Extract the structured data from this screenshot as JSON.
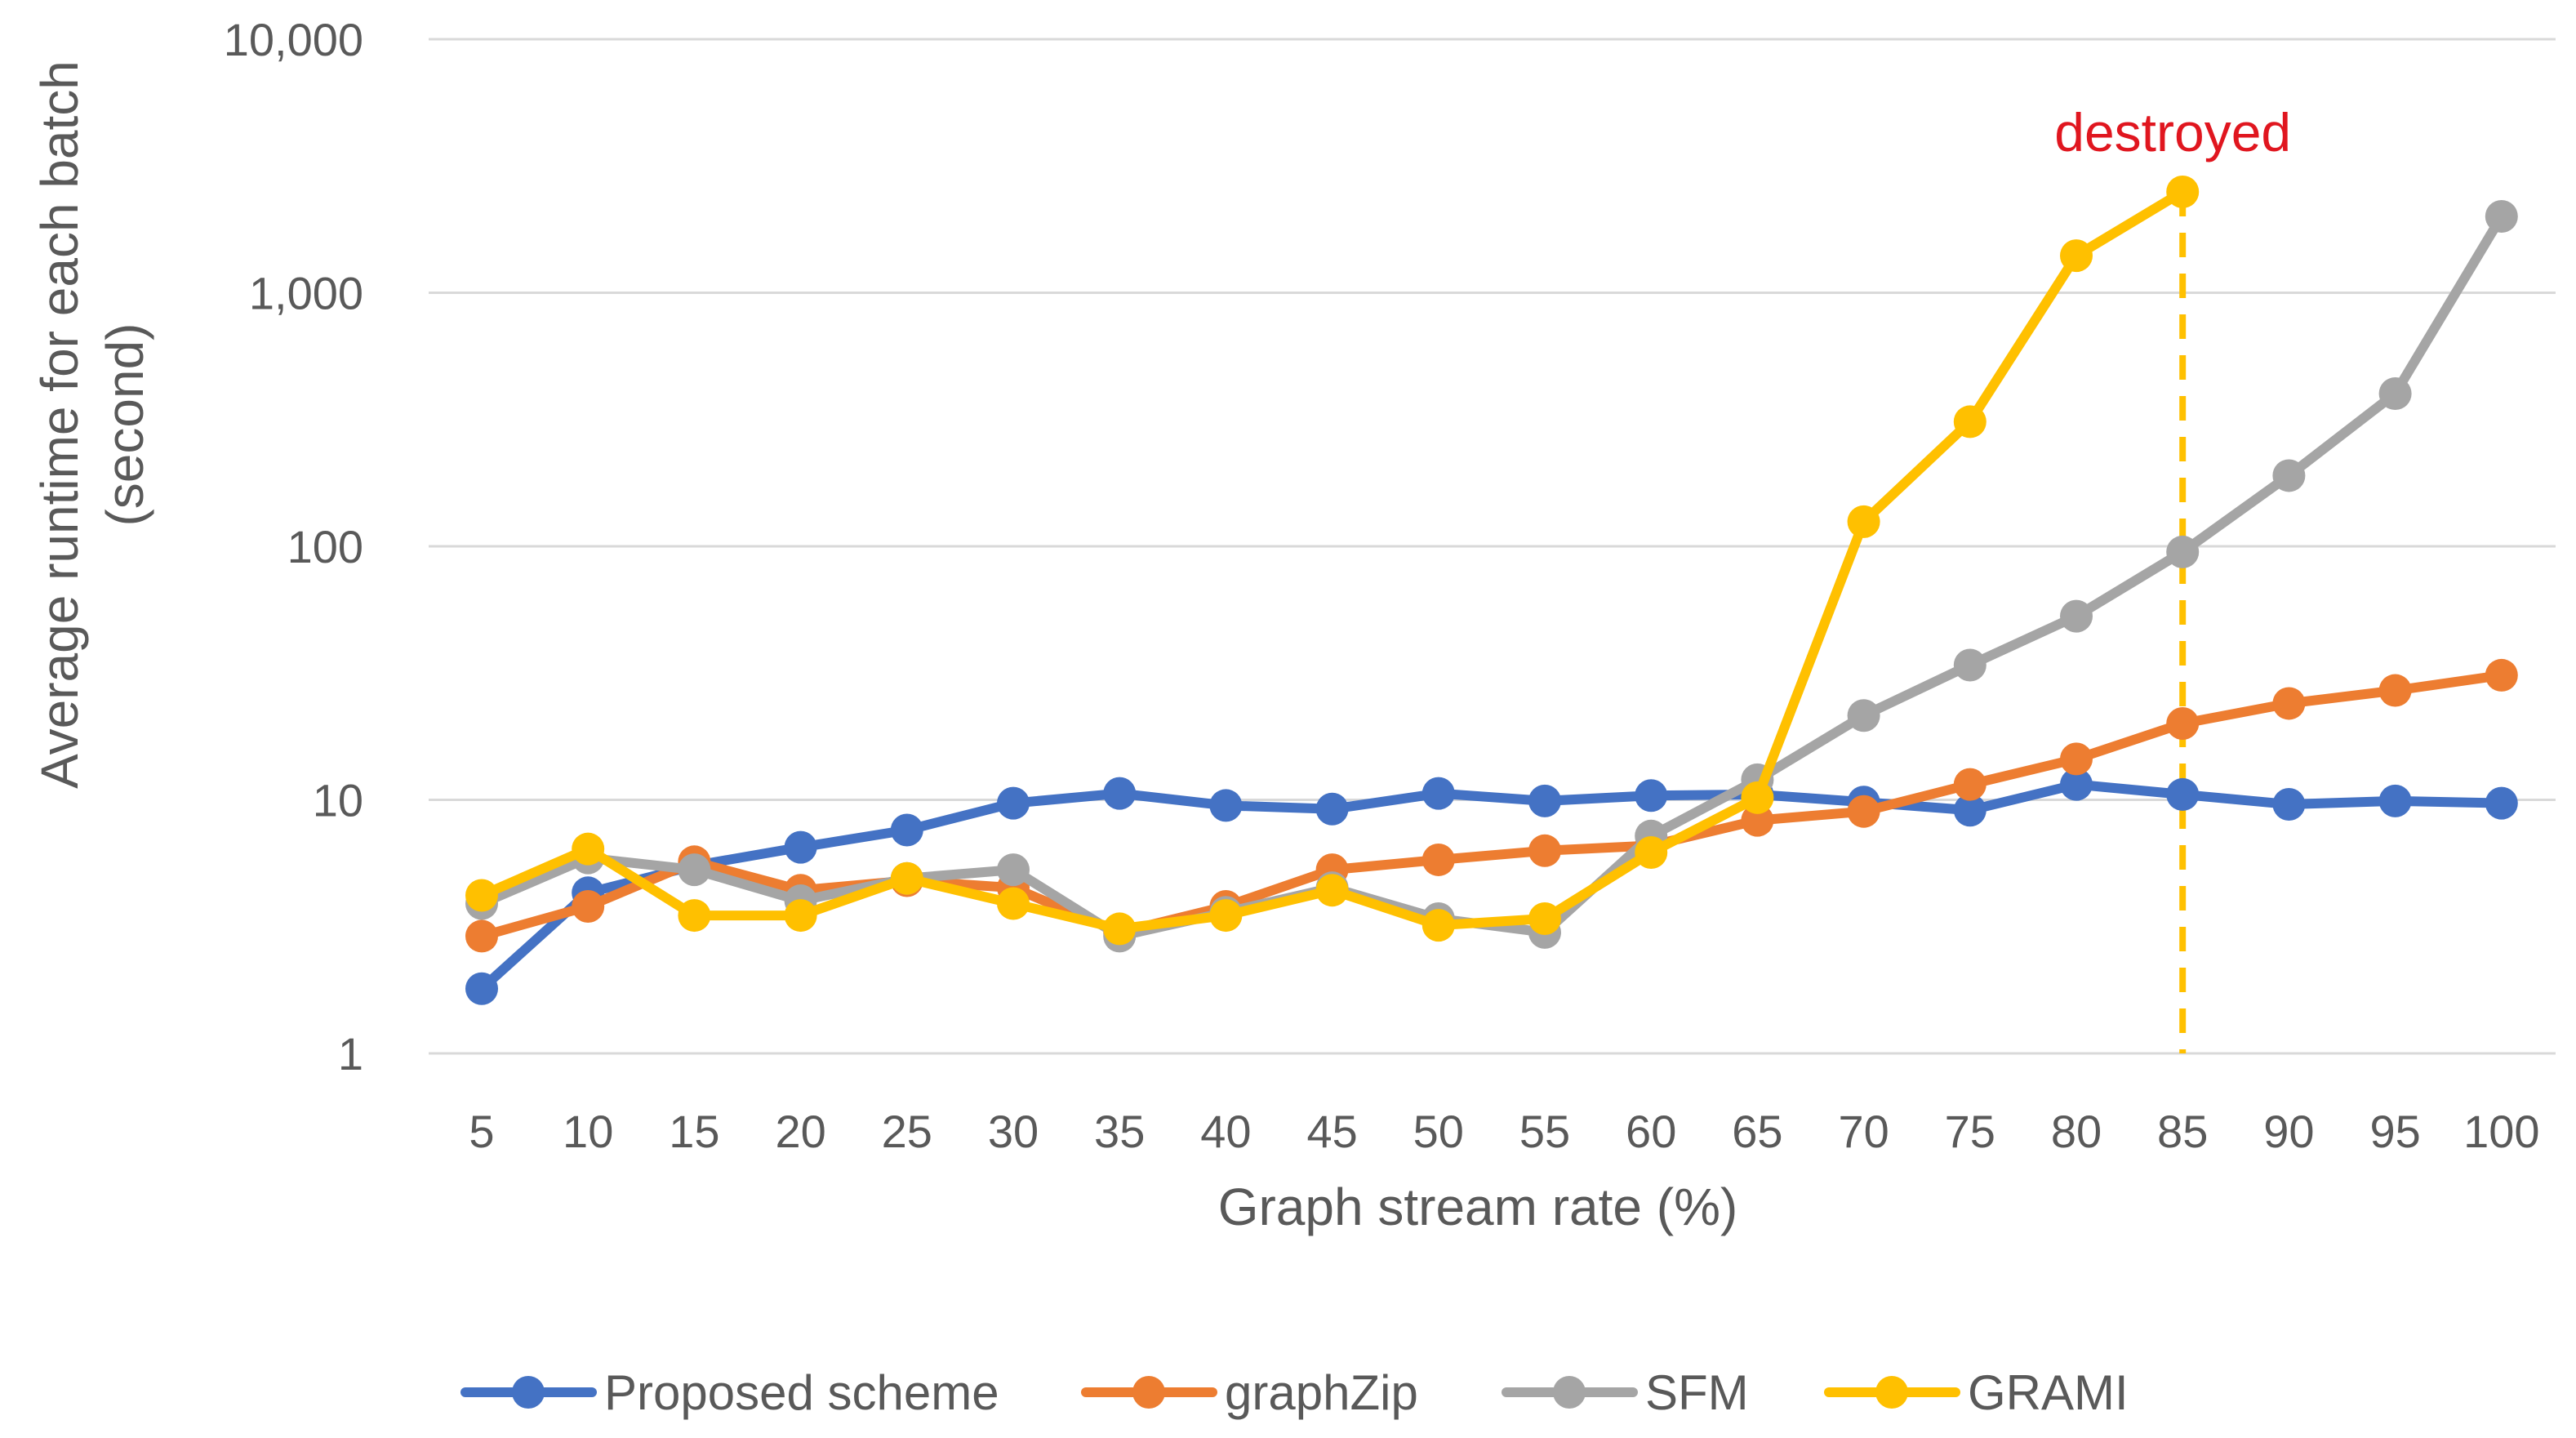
{
  "chart_data": {
    "type": "line",
    "title": "",
    "xlabel": "Graph stream rate (%)",
    "ylabel_lines": [
      "Average runtime for each batch",
      "(second)"
    ],
    "yscale": "log",
    "ylim": [
      1,
      10000
    ],
    "yticks": [
      1,
      10,
      100,
      1000,
      10000
    ],
    "ytick_labels": [
      "1",
      "10",
      "100",
      "1,000",
      "10,000"
    ],
    "grid": true,
    "legend_position": "bottom",
    "categories": [
      "5",
      "10",
      "15",
      "20",
      "25",
      "30",
      "35",
      "40",
      "45",
      "50",
      "55",
      "60",
      "65",
      "70",
      "75",
      "80",
      "85",
      "90",
      "95",
      "100"
    ],
    "series": [
      {
        "name": "Proposed scheme",
        "color": "#4472c4",
        "values": [
          1.8,
          4.3,
          5.5,
          6.5,
          7.6,
          9.7,
          10.6,
          9.5,
          9.2,
          10.6,
          9.9,
          10.4,
          10.5,
          9.8,
          9.1,
          11.5,
          10.5,
          9.6,
          9.9,
          9.7
        ]
      },
      {
        "name": "graphZip",
        "color": "#ed7d31",
        "values": [
          2.9,
          3.8,
          5.7,
          4.4,
          4.8,
          4.5,
          3.0,
          3.8,
          5.3,
          5.8,
          6.3,
          6.6,
          8.3,
          9.0,
          11.5,
          14.5,
          20,
          24,
          27,
          31
        ]
      },
      {
        "name": "SFM",
        "color": "#a5a5a5",
        "values": [
          3.9,
          5.9,
          5.3,
          4.0,
          4.9,
          5.3,
          2.9,
          3.6,
          4.5,
          3.4,
          3.0,
          7.2,
          12,
          21.5,
          34,
          53,
          95,
          190,
          400,
          2000
        ]
      },
      {
        "name": "GRAMI",
        "color": "#ffc000",
        "values": [
          4.2,
          6.4,
          3.5,
          3.5,
          4.9,
          3.9,
          3.1,
          3.5,
          4.4,
          3.2,
          3.4,
          6.2,
          10.2,
          125,
          310,
          1400,
          2500,
          null,
          null,
          null
        ]
      }
    ],
    "annotations": [
      {
        "text": "destroyed",
        "x": "85",
        "color": "#e0161f",
        "line_color": "#ffc000",
        "line_style": "dashed"
      }
    ]
  }
}
